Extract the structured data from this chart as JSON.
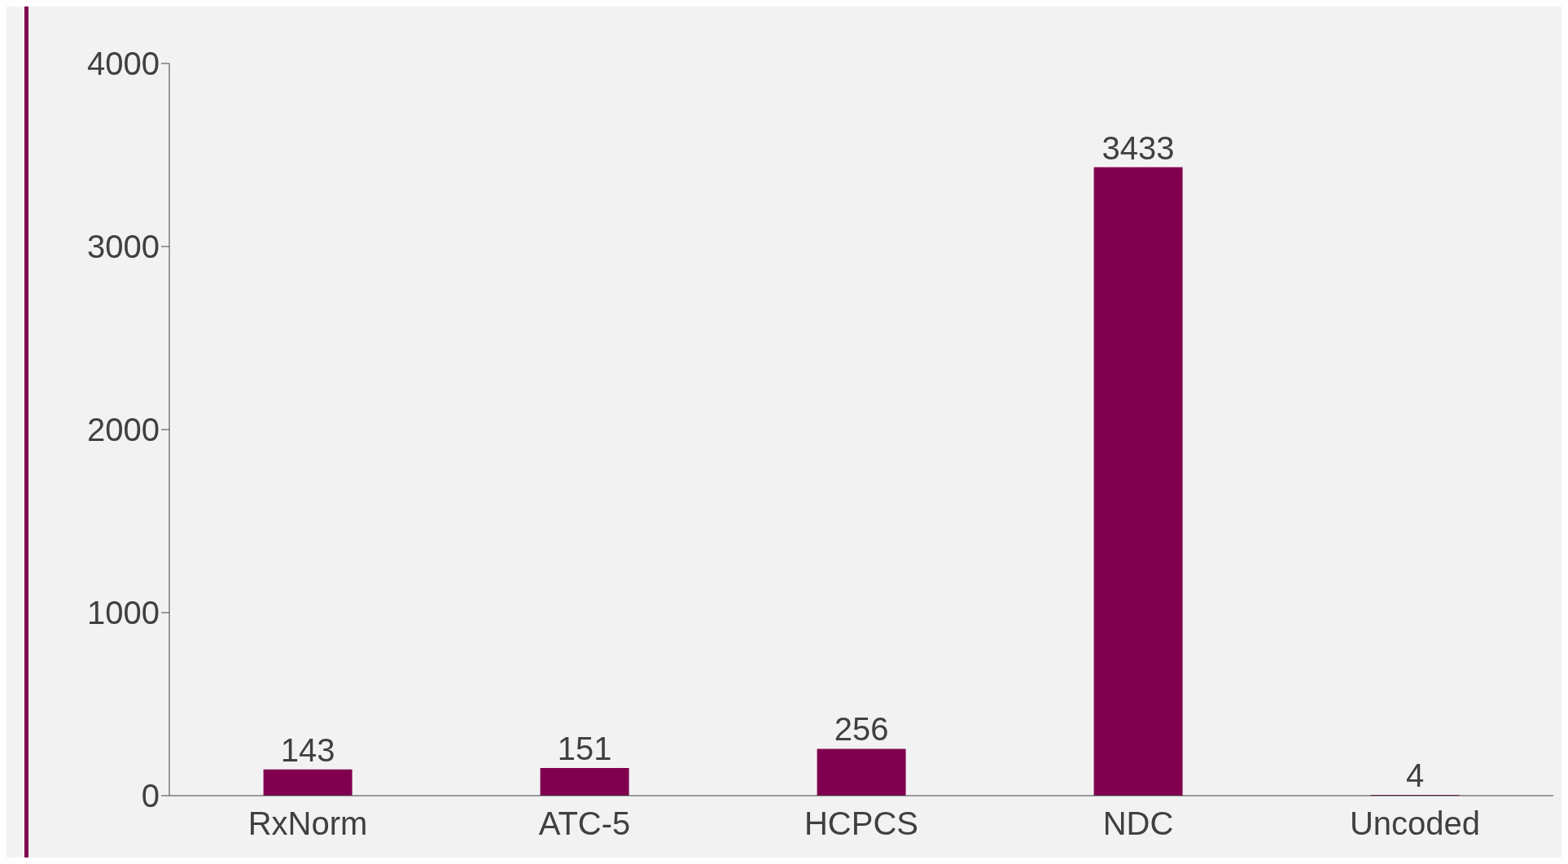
{
  "chart_data": {
    "type": "bar",
    "categories": [
      "RxNorm",
      "ATC-5",
      "HCPCS",
      "NDC",
      "Uncoded"
    ],
    "values": [
      143,
      151,
      256,
      3433,
      4
    ],
    "color": "#80004f",
    "ylim": [
      0,
      4000
    ],
    "yticks": [
      0,
      1000,
      2000,
      3000,
      4000
    ],
    "grid": false,
    "data_labels": true
  }
}
